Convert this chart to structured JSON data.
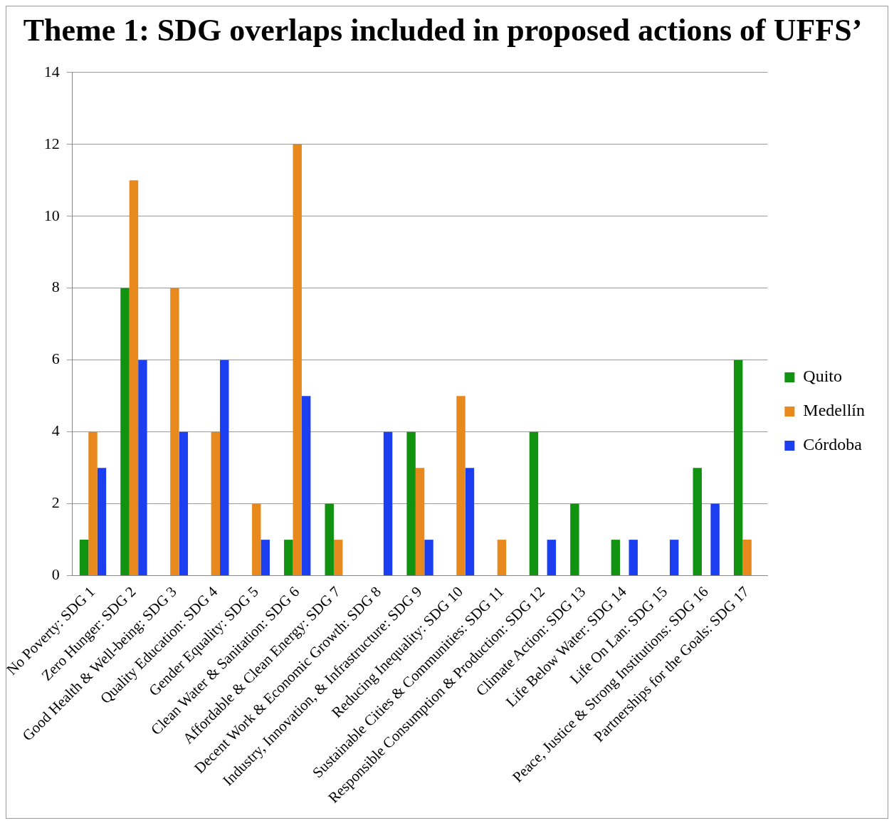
{
  "chart_data": {
    "type": "bar",
    "title": "Theme 1: SDG overlaps included in proposed actions of UFFS’",
    "categories": [
      "No Poverty: SDG 1",
      "Zero Hunger: SDG 2",
      "Good Health & Well-being: SDG 3",
      "Quality Education: SDG 4",
      "Gender Equality: SDG 5",
      "Clean Water & Sanitation: SDG 6",
      "Affordable & Clean Energy: SDG 7",
      "Decent Work & Economic Growth: SDG 8",
      "Industry, Innovation, & Infrastructure: SDG 9",
      "Reducing Inequality: SDG 10",
      "Sustainable Cities & Communities: SDG 11",
      "Responsible Consumption & Production: SDG 12",
      "Climate Action: SDG 13",
      "Life Below Water: SDG 14",
      "Life On Lan: SDG 15",
      "Peace, Justice & Strong Institutions: SDG 16",
      "Partnerships for the Goals: SDG 17"
    ],
    "series": [
      {
        "name": "Quito",
        "color": "#119211",
        "values": [
          1,
          8,
          0,
          0,
          0,
          1,
          2,
          0,
          4,
          0,
          0,
          4,
          2,
          1,
          0,
          3,
          6
        ]
      },
      {
        "name": "Medellín",
        "color": "#e8891e",
        "values": [
          4,
          11,
          8,
          4,
          2,
          12,
          1,
          0,
          3,
          5,
          1,
          0,
          0,
          0,
          0,
          0,
          1
        ]
      },
      {
        "name": "Córdoba",
        "color": "#1a3ef0",
        "values": [
          3,
          6,
          4,
          6,
          1,
          5,
          0,
          4,
          1,
          3,
          0,
          1,
          0,
          1,
          1,
          2,
          0
        ]
      }
    ],
    "ylim": [
      0,
      14
    ],
    "yticks": [
      0,
      2,
      4,
      6,
      8,
      10,
      12,
      14
    ],
    "grid": "y",
    "legend": "right"
  }
}
